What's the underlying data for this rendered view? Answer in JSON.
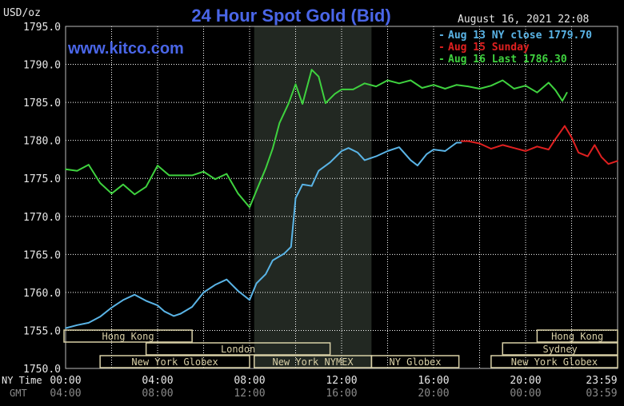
{
  "header": {
    "title": "24 Hour Spot Gold (Bid)",
    "website": "www.kitco.com",
    "timestamp": "August 16, 2021 22:08",
    "unit": "USD/oz"
  },
  "legend": [
    {
      "label": "Aug 13 NY close 1779.70",
      "color": "#5ab4e6"
    },
    {
      "label": "Aug 15 Sunday",
      "color": "#e02020"
    },
    {
      "label": "Aug 16 Last 1786.30",
      "color": "#3fd23f"
    }
  ],
  "colors": {
    "background": "#000000",
    "grid": "#ffffff",
    "title": "#4a66e8",
    "label": "#e8e8e8",
    "session_fill": "#d8cfa6",
    "session_text": "#000000",
    "highlight_band": "#222822"
  },
  "axes": {
    "y_ticks": [
      "1795.0",
      "1790.0",
      "1785.0",
      "1780.0",
      "1775.0",
      "1770.0",
      "1765.0",
      "1760.0",
      "1755.0",
      "1750.0"
    ],
    "ny_row_label": "NY Time",
    "gmt_row_label": "GMT",
    "ny_ticks": [
      "00:00",
      "04:00",
      "08:00",
      "12:00",
      "16:00",
      "20:00",
      "23:59"
    ],
    "gmt_ticks": [
      "04:00",
      "08:00",
      "12:00",
      "16:00",
      "20:00",
      "00:00",
      "03:59"
    ]
  },
  "sessions": [
    {
      "label": "Hong Kong",
      "start": -0.5,
      "end": 5.5,
      "row": 0
    },
    {
      "label": "Hong Kong",
      "start": 20.5,
      "end": 24,
      "row": 0
    },
    {
      "label": "London",
      "start": 3.5,
      "end": 11.5,
      "row": 1
    },
    {
      "label": "Sydney",
      "start": 19,
      "end": 24,
      "row": 1
    },
    {
      "label": "New York Globex",
      "start": 1.5,
      "end": 8,
      "row": 2
    },
    {
      "label": "New York NYMEX",
      "start": 8.2,
      "end": 13.3,
      "row": 2
    },
    {
      "label": "NY Globex",
      "start": 13.3,
      "end": 17.1,
      "row": 2
    },
    {
      "label": "New York Globex",
      "start": 18.5,
      "end": 24,
      "row": 2
    }
  ],
  "chart_data": {
    "type": "line",
    "title": "24 Hour Spot Gold (Bid)",
    "ylabel": "USD/oz",
    "xlabel": "NY Time",
    "xlim": [
      0,
      24
    ],
    "ylim": [
      1750,
      1795
    ],
    "x_unit": "hours (NY Time)",
    "highlight_range": [
      8.2,
      13.3
    ],
    "series": [
      {
        "name": "Aug 13 NY close 1779.70",
        "color": "#5ab4e6",
        "x": [
          0,
          0.5,
          1,
          1.5,
          2,
          2.5,
          3,
          3.5,
          4,
          4.3,
          4.7,
          5,
          5.5,
          6,
          6.5,
          7,
          7.5,
          8,
          8.3,
          8.7,
          9,
          9.5,
          9.8,
          10,
          10.3,
          10.7,
          11,
          11.5,
          12,
          12.3,
          12.7,
          13,
          13.5,
          14,
          14.5,
          15,
          15.3,
          15.7,
          16,
          16.5,
          17,
          17.2
        ],
        "y": [
          1755.3,
          1755.7,
          1756.0,
          1756.8,
          1758.0,
          1759.0,
          1759.7,
          1758.9,
          1758.3,
          1757.5,
          1756.9,
          1757.2,
          1758.1,
          1760.0,
          1761.0,
          1761.7,
          1760.2,
          1759.0,
          1761.2,
          1762.4,
          1764.2,
          1765.1,
          1766.0,
          1772.4,
          1774.2,
          1774.0,
          1776.0,
          1777.1,
          1778.6,
          1779.0,
          1778.4,
          1777.4,
          1777.9,
          1778.6,
          1779.1,
          1777.4,
          1776.7,
          1778.2,
          1778.8,
          1778.6,
          1779.7,
          1779.7
        ]
      },
      {
        "name": "Aug 15 Sunday",
        "color": "#e02020",
        "x": [
          17.2,
          17.5,
          18,
          18.5,
          19,
          19.5,
          20,
          20.5,
          21,
          21.3,
          21.7,
          22,
          22.3,
          22.7,
          23,
          23.3,
          23.6,
          24
        ],
        "y": [
          1779.9,
          1779.9,
          1779.6,
          1778.9,
          1779.4,
          1779.0,
          1778.6,
          1779.2,
          1778.8,
          1780.2,
          1781.9,
          1780.4,
          1778.4,
          1777.9,
          1779.4,
          1777.8,
          1776.9,
          1777.3
        ]
      },
      {
        "name": "Aug 16 Last 1786.30",
        "color": "#3fd23f",
        "x": [
          0,
          0.5,
          1,
          1.5,
          2,
          2.5,
          3,
          3.5,
          4,
          4.5,
          5,
          5.5,
          6,
          6.5,
          7,
          7.5,
          8,
          8.3,
          8.7,
          9,
          9.3,
          9.7,
          10,
          10.3,
          10.7,
          11,
          11.3,
          11.7,
          12,
          12.5,
          13,
          13.5,
          14,
          14.5,
          15,
          15.5,
          16,
          16.5,
          17,
          17.5,
          18,
          18.5,
          19,
          19.5,
          20,
          20.5,
          21,
          21.3,
          21.6,
          21.8
        ],
        "y": [
          1776.2,
          1776.0,
          1776.8,
          1774.4,
          1773.0,
          1774.2,
          1772.9,
          1773.9,
          1776.7,
          1775.4,
          1775.4,
          1775.4,
          1775.9,
          1774.9,
          1775.6,
          1773.0,
          1771.2,
          1773.4,
          1776.3,
          1778.9,
          1782.3,
          1784.9,
          1787.4,
          1784.8,
          1789.3,
          1788.4,
          1784.9,
          1786.1,
          1786.7,
          1786.7,
          1787.5,
          1787.1,
          1787.9,
          1787.5,
          1787.9,
          1786.9,
          1787.3,
          1786.8,
          1787.3,
          1787.1,
          1786.8,
          1787.2,
          1787.9,
          1786.8,
          1787.2,
          1786.3,
          1787.6,
          1786.6,
          1785.2,
          1786.3
        ]
      }
    ]
  }
}
